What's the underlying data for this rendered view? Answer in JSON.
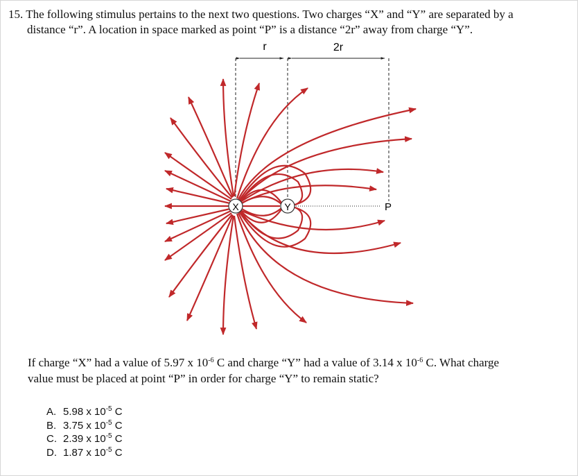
{
  "question": {
    "number": "15.",
    "stem_line1": "The following stimulus pertains to the next two questions. Two charges “X” and “Y” are separated by a",
    "stem_line2": "distance “r”. A location in space marked as point “P” is a distance “2r” away from charge “Y”.",
    "prompt_line1_pre": "If charge “X” had a value of 5.97 x 10",
    "prompt_exp1": "-6",
    "prompt_line1_mid": " C and charge “Y” had a value of 3.14 x 10",
    "prompt_exp2": "-6",
    "prompt_line1_post": " C. What charge",
    "prompt_line2": "value must be placed at point “P” in order for charge “Y” to remain static?"
  },
  "figure": {
    "label_r": "r",
    "label_2r": "2r",
    "charge_x": "X",
    "charge_y": "Y",
    "point_p": "P",
    "field_line_color": "#c0282a"
  },
  "options": [
    {
      "letter": "A.",
      "mantissa": "5.98 x 10",
      "exp": "-5",
      "unit": " C"
    },
    {
      "letter": "B.",
      "mantissa": "3.75 x 10",
      "exp": "-5",
      "unit": " C"
    },
    {
      "letter": "C.",
      "mantissa": "2.39 x 10",
      "exp": "-5",
      "unit": " C"
    },
    {
      "letter": "D.",
      "mantissa": "1.87 x 10",
      "exp": "-5",
      "unit": " C"
    }
  ]
}
